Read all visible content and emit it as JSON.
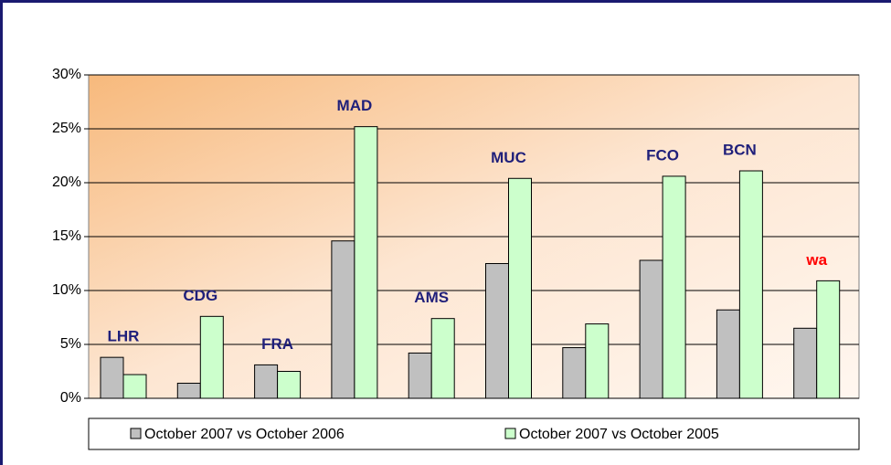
{
  "chart_data": {
    "type": "bar",
    "categories": [
      "LHR",
      "CDG",
      "FRA",
      "MAD",
      "AMS",
      "MUC",
      null,
      "FCO",
      "BCN",
      "wa"
    ],
    "category_colors": [
      "#1f1f7a",
      "#1f1f7a",
      "#1f1f7a",
      "#1f1f7a",
      "#1f1f7a",
      "#1f1f7a",
      "#1f1f7a",
      "#1f1f7a",
      "#1f1f7a",
      "#ff0000"
    ],
    "series": [
      {
        "name": "October 2007 vs October 2006",
        "color": "#c0c0c0",
        "values": [
          3.8,
          1.4,
          3.1,
          14.6,
          4.2,
          12.5,
          4.7,
          12.8,
          8.2,
          6.5
        ]
      },
      {
        "name": "October 2007 vs October 2005",
        "color": "#ccffcc",
        "values": [
          2.2,
          7.6,
          2.5,
          25.2,
          7.4,
          20.4,
          6.9,
          20.6,
          21.1,
          10.9
        ]
      }
    ],
    "ylim": [
      0,
      30
    ],
    "yticks": [
      {
        "value": 0,
        "label": "0%"
      },
      {
        "value": 5,
        "label": "5%"
      },
      {
        "value": 10,
        "label": "10%"
      },
      {
        "value": 15,
        "label": "15%"
      },
      {
        "value": 20,
        "label": "20%"
      },
      {
        "value": 25,
        "label": "25%"
      },
      {
        "value": 30,
        "label": "30%"
      }
    ],
    "grid": true,
    "legend": "bottom"
  }
}
